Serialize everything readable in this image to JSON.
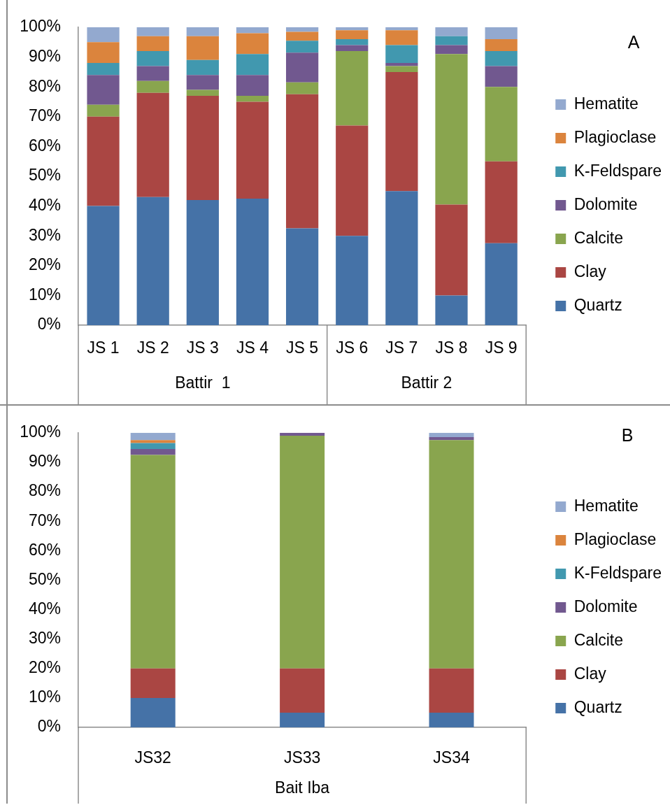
{
  "chart_data": [
    {
      "type": "bar",
      "categories": [
        "JS 1",
        "JS 2",
        "JS 3",
        "JS 4",
        "JS 5",
        "JS 6",
        "JS 7",
        "JS 8",
        "JS 9"
      ],
      "stacked": true,
      "series": [
        {
          "name": "Quartz",
          "color": "#4572a7",
          "values": [
            40,
            43,
            42,
            42.5,
            32.5,
            30,
            45,
            10,
            27.5
          ]
        },
        {
          "name": "Clay",
          "color": "#aa4643",
          "values": [
            30,
            35,
            35,
            32.5,
            45,
            37,
            40,
            30.5,
            27.5
          ]
        },
        {
          "name": "Calcite",
          "color": "#89a54e",
          "values": [
            4,
            4,
            2,
            2,
            4,
            25,
            2,
            50.5,
            25
          ]
        },
        {
          "name": "Dolomite",
          "color": "#71588f",
          "values": [
            10,
            5,
            5,
            7,
            10,
            2,
            1,
            3,
            7
          ]
        },
        {
          "name": "K-Feldspare",
          "color": "#4198af",
          "values": [
            4,
            5,
            5,
            7,
            4,
            2,
            6,
            3,
            5
          ]
        },
        {
          "name": "Plagioclase",
          "color": "#db843d",
          "values": [
            7,
            5,
            8,
            7,
            3,
            3,
            5,
            0,
            4
          ]
        },
        {
          "name": "Hematite",
          "color": "#93a9cf",
          "values": [
            5,
            3,
            3,
            2,
            1.5,
            1,
            1,
            3,
            4
          ]
        }
      ],
      "ylim": [
        0,
        100
      ],
      "yticks": [
        {
          "value": 0,
          "label": "0%"
        },
        {
          "value": 10,
          "label": "10%"
        },
        {
          "value": 20,
          "label": "20%"
        },
        {
          "value": 30,
          "label": "30%"
        },
        {
          "value": 40,
          "label": "40%"
        },
        {
          "value": 50,
          "label": "50%"
        },
        {
          "value": 60,
          "label": "60%"
        },
        {
          "value": 70,
          "label": "70%"
        },
        {
          "value": 80,
          "label": "80%"
        },
        {
          "value": 90,
          "label": "90%"
        },
        {
          "value": 100,
          "label": "100%"
        }
      ],
      "grid": false,
      "legend": "right",
      "annotations": [
        "A",
        "Battir  1",
        "Battir 2"
      ]
    },
    {
      "type": "bar",
      "categories": [
        "JS32",
        "JS33",
        "JS34"
      ],
      "stacked": true,
      "series": [
        {
          "name": "Quartz",
          "color": "#4572a7",
          "values": [
            10,
            5,
            5
          ]
        },
        {
          "name": "Clay",
          "color": "#aa4643",
          "values": [
            10,
            15,
            15
          ]
        },
        {
          "name": "Calcite",
          "color": "#89a54e",
          "values": [
            72.5,
            79,
            77.5
          ]
        },
        {
          "name": "Dolomite",
          "color": "#71588f",
          "values": [
            2,
            1,
            1
          ]
        },
        {
          "name": "K-Feldspare",
          "color": "#4198af",
          "values": [
            2,
            0,
            0
          ]
        },
        {
          "name": "Plagioclase",
          "color": "#db843d",
          "values": [
            1,
            0,
            0
          ]
        },
        {
          "name": "Hematite",
          "color": "#93a9cf",
          "values": [
            2.5,
            0,
            1.5
          ]
        }
      ],
      "ylim": [
        0,
        100
      ],
      "yticks": [
        {
          "value": 0,
          "label": "0%"
        },
        {
          "value": 10,
          "label": "10%"
        },
        {
          "value": 20,
          "label": "20%"
        },
        {
          "value": 30,
          "label": "30%"
        },
        {
          "value": 40,
          "label": "40%"
        },
        {
          "value": 50,
          "label": "50%"
        },
        {
          "value": 60,
          "label": "60%"
        },
        {
          "value": 70,
          "label": "70%"
        },
        {
          "value": 80,
          "label": "80%"
        },
        {
          "value": 90,
          "label": "90%"
        },
        {
          "value": 100,
          "label": "100%"
        }
      ],
      "grid": false,
      "legend": "right",
      "annotations": [
        "B",
        "Bait Iba"
      ]
    }
  ]
}
